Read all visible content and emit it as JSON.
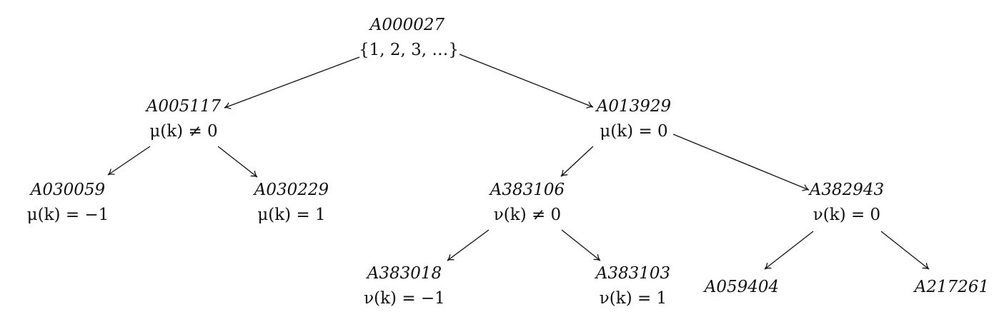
{
  "nodes": {
    "root": {
      "id": "A000027",
      "condition": "{1, 2, 3, …}"
    },
    "n1": {
      "id": "A005117",
      "condition": "μ(k) ≠ 0"
    },
    "n2": {
      "id": "A013929",
      "condition": "μ(k) = 0"
    },
    "n11": {
      "id": "A030059",
      "condition": "μ(k) = −1"
    },
    "n12": {
      "id": "A030229",
      "condition": "μ(k) = 1"
    },
    "n21": {
      "id": "A383106",
      "condition": "ν(k) ≠ 0"
    },
    "n22": {
      "id": "A382943",
      "condition": "ν(k) = 0"
    },
    "n211": {
      "id": "A383018",
      "condition": "ν(k) = −1"
    },
    "n212": {
      "id": "A383103",
      "condition": "ν(k) = 1"
    },
    "n221": {
      "id": "A059404"
    },
    "n222": {
      "id": "A217261"
    }
  },
  "edges": [
    {
      "from": "root",
      "to": "n1"
    },
    {
      "from": "root",
      "to": "n2"
    },
    {
      "from": "n1",
      "to": "n11"
    },
    {
      "from": "n1",
      "to": "n12"
    },
    {
      "from": "n2",
      "to": "n21"
    },
    {
      "from": "n2",
      "to": "n22"
    },
    {
      "from": "n21",
      "to": "n211"
    },
    {
      "from": "n21",
      "to": "n212"
    },
    {
      "from": "n22",
      "to": "n221"
    },
    {
      "from": "n22",
      "to": "n222"
    }
  ]
}
